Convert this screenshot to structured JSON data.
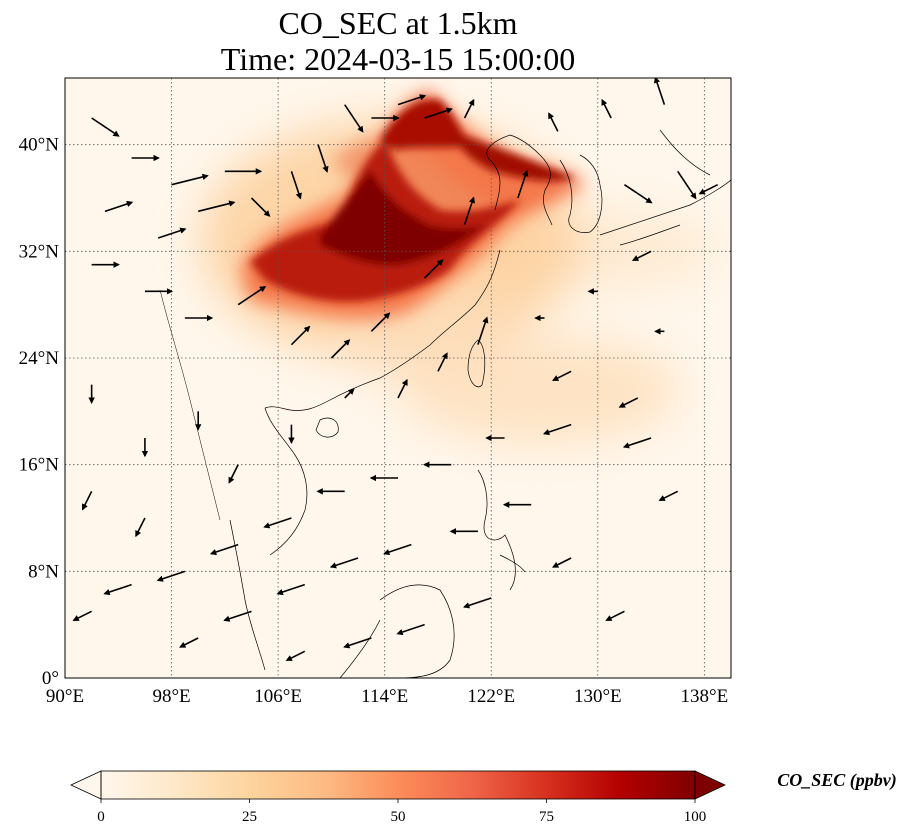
{
  "title": {
    "line1": "CO_SEC at 1.5km",
    "line2": "Time: 2024-03-15 15:00:00"
  },
  "map": {
    "projection": "PlateCarree",
    "lon_range": [
      90,
      140
    ],
    "lat_range": [
      0,
      45
    ],
    "gridlines": "dotted",
    "lon_ticks": [
      {
        "value": 90,
        "label": "90°E"
      },
      {
        "value": 98,
        "label": "98°E"
      },
      {
        "value": 106,
        "label": "106°E"
      },
      {
        "value": 114,
        "label": "114°E"
      },
      {
        "value": 122,
        "label": "122°E"
      },
      {
        "value": 130,
        "label": "130°E"
      },
      {
        "value": 138,
        "label": "138°E"
      }
    ],
    "lat_ticks": [
      {
        "value": 0,
        "label": "0°"
      },
      {
        "value": 8,
        "label": "8°N"
      },
      {
        "value": 16,
        "label": "16°N"
      },
      {
        "value": 24,
        "label": "24°N"
      },
      {
        "value": 32,
        "label": "32°N"
      },
      {
        "value": 40,
        "label": "40°N"
      }
    ],
    "colormap": "OrRd",
    "variable": "CO_SEC",
    "plume": [
      {
        "lon": 114,
        "lat": 34.5,
        "value": 100
      },
      {
        "lon": 110,
        "lat": 32,
        "value": 95
      },
      {
        "lon": 118,
        "lat": 36,
        "value": 90
      },
      {
        "lon": 116,
        "lat": 41,
        "value": 85
      },
      {
        "lon": 105,
        "lat": 30.5,
        "value": 75
      },
      {
        "lon": 122,
        "lat": 37.5,
        "value": 70
      },
      {
        "lon": 113,
        "lat": 28,
        "value": 65
      },
      {
        "lon": 120,
        "lat": 29,
        "value": 45
      },
      {
        "lon": 125,
        "lat": 21,
        "value": 20
      }
    ]
  },
  "colorbar": {
    "label": "CO_SEC (ppbv)",
    "min": 0,
    "max": 100,
    "extend": "both",
    "ticks": [
      {
        "value": 0,
        "label": "0"
      },
      {
        "value": 25,
        "label": "25"
      },
      {
        "value": 50,
        "label": "50"
      },
      {
        "value": 75,
        "label": "75"
      },
      {
        "value": 100,
        "label": "100"
      }
    ],
    "colors": [
      "#fff7ec",
      "#fee8c8",
      "#fdd49e",
      "#fdbb84",
      "#fc8d59",
      "#ef6548",
      "#d7301f",
      "#b30000",
      "#7f0000"
    ]
  },
  "wind_vectors": [
    {
      "lon": 92,
      "lat": 42,
      "u": 3,
      "v": -2
    },
    {
      "lon": 95,
      "lat": 39,
      "u": 3,
      "v": 0
    },
    {
      "lon": 98,
      "lat": 37,
      "u": 4,
      "v": 1
    },
    {
      "lon": 102,
      "lat": 38,
      "u": 4,
      "v": 0
    },
    {
      "lon": 93,
      "lat": 35,
      "u": 3,
      "v": 1
    },
    {
      "lon": 97,
      "lat": 33,
      "u": 3,
      "v": 1
    },
    {
      "lon": 100,
      "lat": 35,
      "u": 4,
      "v": 1
    },
    {
      "lon": 104,
      "lat": 36,
      "u": 2,
      "v": -2
    },
    {
      "lon": 107,
      "lat": 38,
      "u": 1,
      "v": -3
    },
    {
      "lon": 109,
      "lat": 40,
      "u": 1,
      "v": -3
    },
    {
      "lon": 111,
      "lat": 43,
      "u": 2,
      "v": -3
    },
    {
      "lon": 113,
      "lat": 42,
      "u": 3,
      "v": 0
    },
    {
      "lon": 115,
      "lat": 43,
      "u": 3,
      "v": 1
    },
    {
      "lon": 117,
      "lat": 42,
      "u": 3,
      "v": 1
    },
    {
      "lon": 120,
      "lat": 42,
      "u": 1,
      "v": 2
    },
    {
      "lon": 92,
      "lat": 31,
      "u": 3,
      "v": 0
    },
    {
      "lon": 96,
      "lat": 29,
      "u": 3,
      "v": 0
    },
    {
      "lon": 99,
      "lat": 27,
      "u": 3,
      "v": 0
    },
    {
      "lon": 103,
      "lat": 28,
      "u": 3,
      "v": 2
    },
    {
      "lon": 107,
      "lat": 25,
      "u": 2,
      "v": 2
    },
    {
      "lon": 110,
      "lat": 24,
      "u": 2,
      "v": 2
    },
    {
      "lon": 113,
      "lat": 26,
      "u": 2,
      "v": 2
    },
    {
      "lon": 117,
      "lat": 30,
      "u": 2,
      "v": 2
    },
    {
      "lon": 120,
      "lat": 34,
      "u": 1,
      "v": 3
    },
    {
      "lon": 124,
      "lat": 36,
      "u": 1,
      "v": 3
    },
    {
      "lon": 127,
      "lat": 41,
      "u": -1,
      "v": 2
    },
    {
      "lon": 131,
      "lat": 42,
      "u": -1,
      "v": 2
    },
    {
      "lon": 135,
      "lat": 43,
      "u": -1,
      "v": 3
    },
    {
      "lon": 132,
      "lat": 37,
      "u": 3,
      "v": -2
    },
    {
      "lon": 136,
      "lat": 38,
      "u": 2,
      "v": -3
    },
    {
      "lon": 139,
      "lat": 37,
      "u": -2,
      "v": -1
    },
    {
      "lon": 134,
      "lat": 32,
      "u": -2,
      "v": -1
    },
    {
      "lon": 130,
      "lat": 29,
      "u": -1,
      "v": 0
    },
    {
      "lon": 126,
      "lat": 27,
      "u": -1,
      "v": 0
    },
    {
      "lon": 135,
      "lat": 26,
      "u": -1,
      "v": 0
    },
    {
      "lon": 128,
      "lat": 23,
      "u": -2,
      "v": -1
    },
    {
      "lon": 133,
      "lat": 21,
      "u": -2,
      "v": -1
    },
    {
      "lon": 128,
      "lat": 19,
      "u": -3,
      "v": -1
    },
    {
      "lon": 134,
      "lat": 18,
      "u": -3,
      "v": -1
    },
    {
      "lon": 123,
      "lat": 18,
      "u": -2,
      "v": 0
    },
    {
      "lon": 119,
      "lat": 16,
      "u": -3,
      "v": 0
    },
    {
      "lon": 115,
      "lat": 15,
      "u": -3,
      "v": 0
    },
    {
      "lon": 111,
      "lat": 14,
      "u": -3,
      "v": 0
    },
    {
      "lon": 107,
      "lat": 12,
      "u": -3,
      "v": -1
    },
    {
      "lon": 103,
      "lat": 10,
      "u": -3,
      "v": -1
    },
    {
      "lon": 99,
      "lat": 8,
      "u": -3,
      "v": -1
    },
    {
      "lon": 95,
      "lat": 7,
      "u": -3,
      "v": -1
    },
    {
      "lon": 92,
      "lat": 5,
      "u": -2,
      "v": -1
    },
    {
      "lon": 125,
      "lat": 13,
      "u": -3,
      "v": 0
    },
    {
      "lon": 121,
      "lat": 11,
      "u": -3,
      "v": 0
    },
    {
      "lon": 116,
      "lat": 10,
      "u": -3,
      "v": -1
    },
    {
      "lon": 112,
      "lat": 9,
      "u": -3,
      "v": -1
    },
    {
      "lon": 108,
      "lat": 7,
      "u": -3,
      "v": -1
    },
    {
      "lon": 104,
      "lat": 5,
      "u": -3,
      "v": -1
    },
    {
      "lon": 100,
      "lat": 3,
      "u": -2,
      "v": -1
    },
    {
      "lon": 122,
      "lat": 6,
      "u": -3,
      "v": -1
    },
    {
      "lon": 117,
      "lat": 4,
      "u": -3,
      "v": -1
    },
    {
      "lon": 113,
      "lat": 3,
      "u": -3,
      "v": -1
    },
    {
      "lon": 108,
      "lat": 2,
      "u": -2,
      "v": -1
    },
    {
      "lon": 128,
      "lat": 9,
      "u": -2,
      "v": -1
    },
    {
      "lon": 132,
      "lat": 5,
      "u": -2,
      "v": -1
    },
    {
      "lon": 136,
      "lat": 14,
      "u": -2,
      "v": -1
    },
    {
      "lon": 92,
      "lat": 22,
      "u": 0,
      "v": -2
    },
    {
      "lon": 96,
      "lat": 18,
      "u": 0,
      "v": -2
    },
    {
      "lon": 100,
      "lat": 20,
      "u": 0,
      "v": -2
    },
    {
      "lon": 92,
      "lat": 14,
      "u": -1,
      "v": -2
    },
    {
      "lon": 96,
      "lat": 12,
      "u": -1,
      "v": -2
    },
    {
      "lon": 103,
      "lat": 16,
      "u": -1,
      "v": -2
    },
    {
      "lon": 107,
      "lat": 19,
      "u": 0,
      "v": -2
    },
    {
      "lon": 111,
      "lat": 21,
      "u": 1,
      "v": 1
    },
    {
      "lon": 115,
      "lat": 21,
      "u": 1,
      "v": 2
    },
    {
      "lon": 118,
      "lat": 23,
      "u": 1,
      "v": 2
    },
    {
      "lon": 121,
      "lat": 25,
      "u": 1,
      "v": 3
    }
  ]
}
